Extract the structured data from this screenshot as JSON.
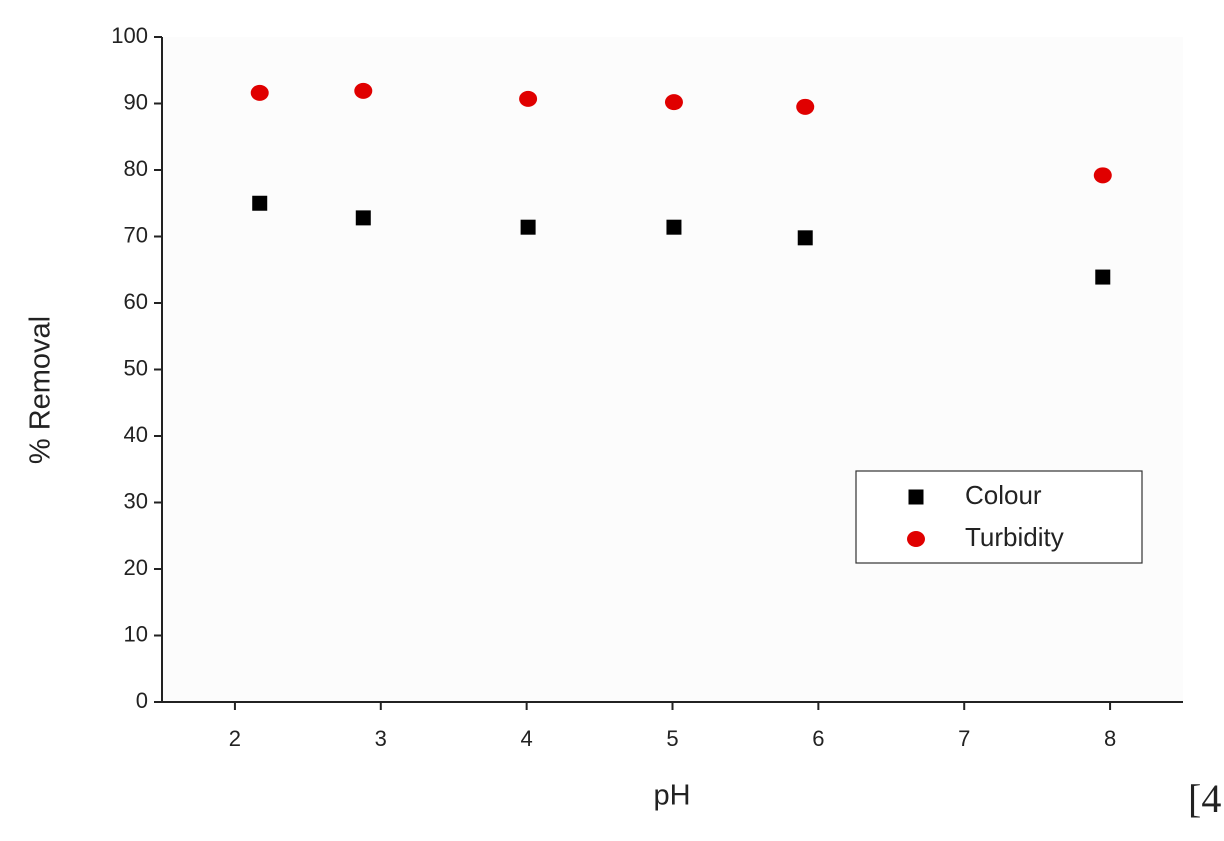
{
  "chart_data": {
    "type": "scatter",
    "x_label": "pH",
    "y_label": "% Removal",
    "annotation": "[4",
    "xlim": [
      1.5,
      8.5
    ],
    "xticks": [
      2,
      3,
      4,
      5,
      6,
      7,
      8
    ],
    "ylim": [
      0,
      100
    ],
    "yticks": [
      0,
      10,
      20,
      30,
      40,
      50,
      60,
      70,
      80,
      90,
      100
    ],
    "legend": "right",
    "series": [
      {
        "name": "Colour",
        "color": "#000000",
        "marker": "square",
        "x": [
          2.17,
          2.88,
          4.01,
          5.01,
          5.91,
          7.95
        ],
        "values": [
          75.0,
          72.8,
          71.4,
          71.4,
          69.8,
          63.9
        ]
      },
      {
        "name": "Turbidity",
        "color": "#e00000",
        "marker": "circle",
        "x": [
          2.17,
          2.88,
          4.01,
          5.01,
          5.91,
          7.95
        ],
        "values": [
          91.6,
          91.9,
          90.7,
          90.2,
          89.5,
          79.2
        ]
      }
    ]
  }
}
